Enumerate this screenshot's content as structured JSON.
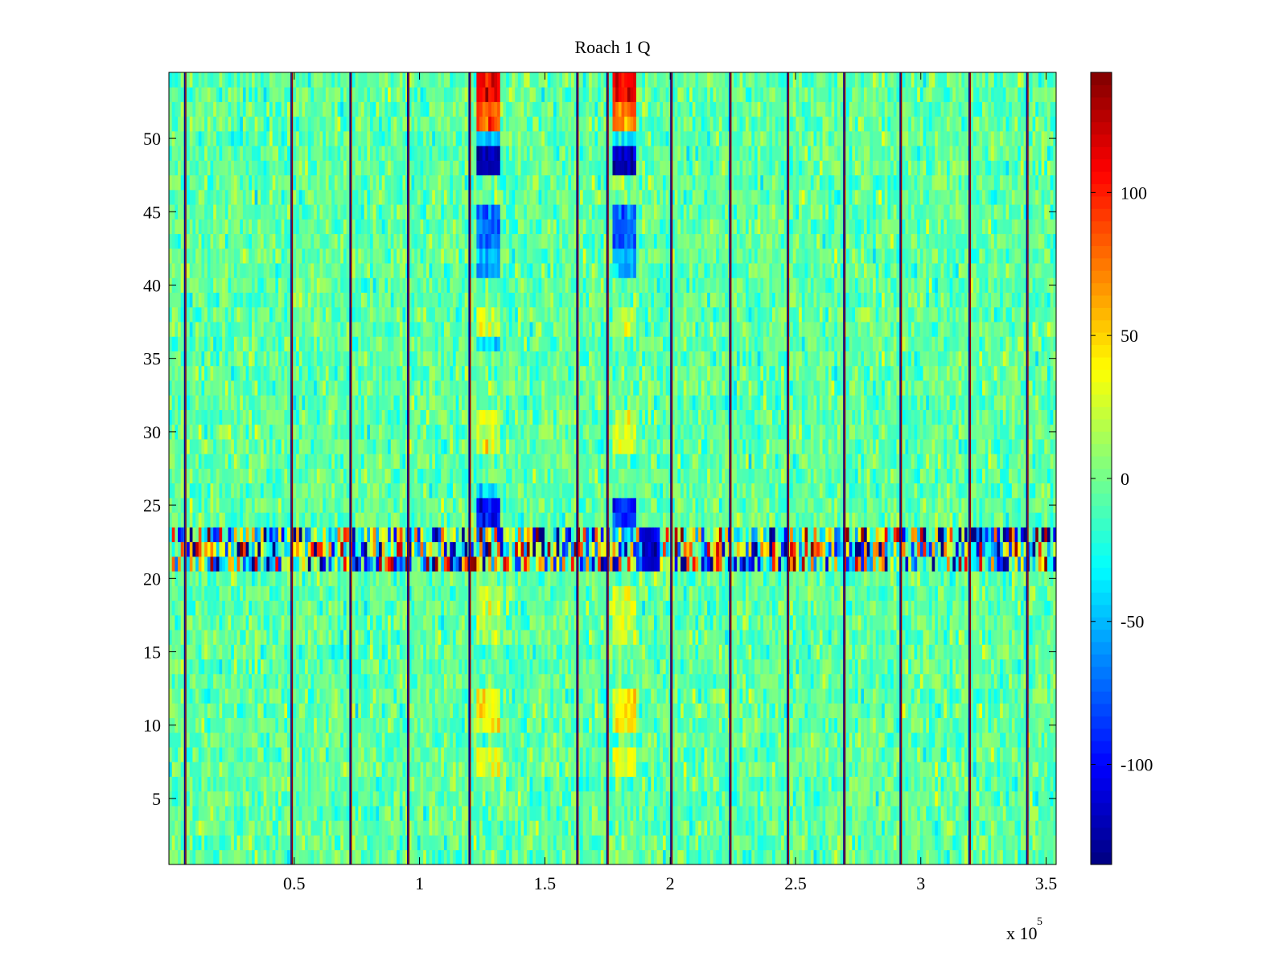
{
  "chart_data": {
    "type": "heatmap",
    "title": "Roach 1 Q",
    "xlabel": "",
    "ylabel": "",
    "x_range": [
      0,
      354000
    ],
    "y_range": [
      0.5,
      54.5
    ],
    "x_multiplier_base": "x 10",
    "x_multiplier_exponent": "5",
    "x_ticks": [
      {
        "value": 50000,
        "label": "0.5"
      },
      {
        "value": 100000,
        "label": "1"
      },
      {
        "value": 150000,
        "label": "1.5"
      },
      {
        "value": 200000,
        "label": "2"
      },
      {
        "value": 250000,
        "label": "2.5"
      },
      {
        "value": 300000,
        "label": "3"
      },
      {
        "value": 350000,
        "label": "3.5"
      }
    ],
    "y_ticks": [
      {
        "value": 5,
        "label": "5"
      },
      {
        "value": 10,
        "label": "10"
      },
      {
        "value": 15,
        "label": "15"
      },
      {
        "value": 20,
        "label": "20"
      },
      {
        "value": 25,
        "label": "25"
      },
      {
        "value": 30,
        "label": "30"
      },
      {
        "value": 35,
        "label": "35"
      },
      {
        "value": 40,
        "label": "40"
      },
      {
        "value": 45,
        "label": "45"
      },
      {
        "value": 50,
        "label": "50"
      }
    ],
    "colorbar": {
      "colormap": "jet",
      "range": [
        -135,
        142
      ],
      "ticks": [
        {
          "value": -100,
          "label": "-100"
        },
        {
          "value": -50,
          "label": "-50"
        },
        {
          "value": 0,
          "label": "0"
        },
        {
          "value": 50,
          "label": "50"
        },
        {
          "value": 100,
          "label": "100"
        }
      ]
    },
    "rows": 54,
    "background_value": -5,
    "background_noise": 14,
    "vertical_lines": [
      6500,
      49000,
      72500,
      95500,
      120000,
      163000,
      175000,
      200500,
      224000,
      247000,
      269500,
      292000,
      319500,
      342500
    ],
    "vertical_line_values": [
      -130,
      135
    ],
    "noisy_band": {
      "y_min": 21,
      "y_max": 23,
      "noise": 80
    },
    "feature_columns": [
      {
        "x_start": 122500,
        "x_end": 132500,
        "rows": [
          {
            "y_min": 53,
            "y_max": 54,
            "value": 110
          },
          {
            "y_min": 51,
            "y_max": 52,
            "value": 85
          },
          {
            "y_min": 50,
            "y_max": 50,
            "value": -40
          },
          {
            "y_min": 48,
            "y_max": 49,
            "value": -125
          },
          {
            "y_min": 43,
            "y_max": 45,
            "value": -70
          },
          {
            "y_min": 41,
            "y_max": 42,
            "value": -45
          },
          {
            "y_min": 37,
            "y_max": 38,
            "value": 20
          },
          {
            "y_min": 36,
            "y_max": 36,
            "value": -40
          },
          {
            "y_min": 29,
            "y_max": 31,
            "value": 28
          },
          {
            "y_min": 26,
            "y_max": 26,
            "value": -45
          },
          {
            "y_min": 24,
            "y_max": 25,
            "value": -95
          },
          {
            "y_min": 16,
            "y_max": 19,
            "value": 18
          },
          {
            "y_min": 10,
            "y_max": 12,
            "value": 38
          },
          {
            "y_min": 7,
            "y_max": 8,
            "value": 30
          }
        ]
      },
      {
        "x_start": 176500,
        "x_end": 186000,
        "rows": [
          {
            "y_min": 53,
            "y_max": 54,
            "value": 115
          },
          {
            "y_min": 51,
            "y_max": 52,
            "value": 75
          },
          {
            "y_min": 50,
            "y_max": 50,
            "value": -40
          },
          {
            "y_min": 48,
            "y_max": 49,
            "value": -120
          },
          {
            "y_min": 43,
            "y_max": 45,
            "value": -75
          },
          {
            "y_min": 41,
            "y_max": 42,
            "value": -45
          },
          {
            "y_min": 37,
            "y_max": 38,
            "value": 15
          },
          {
            "y_min": 29,
            "y_max": 31,
            "value": 25
          },
          {
            "y_min": 24,
            "y_max": 25,
            "value": -90
          },
          {
            "y_min": 16,
            "y_max": 19,
            "value": 20
          },
          {
            "y_min": 10,
            "y_max": 12,
            "value": 40
          },
          {
            "y_min": 7,
            "y_max": 8,
            "value": 35
          }
        ]
      }
    ],
    "band_feature": {
      "x_start": 189000,
      "x_end": 196000,
      "y_min": 21,
      "y_max": 23,
      "value": -110
    },
    "grid": false
  }
}
